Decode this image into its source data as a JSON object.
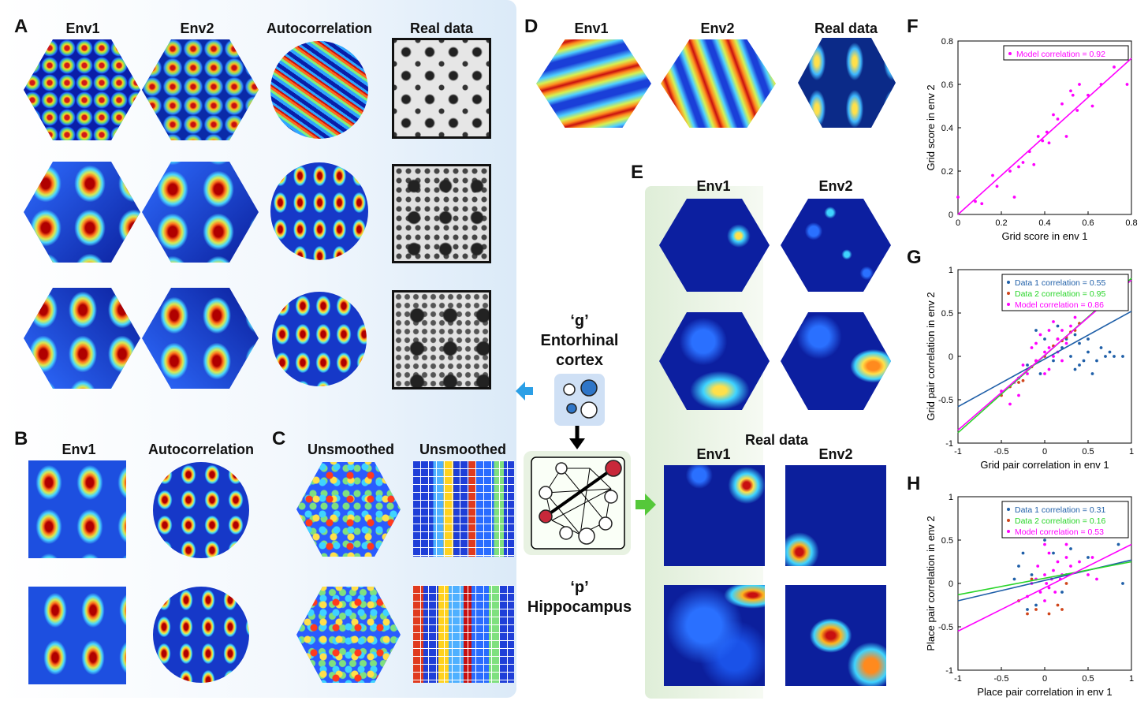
{
  "colors": {
    "jet_low": "#00007f",
    "jet_mid": "#00ffff",
    "jet_high": "#7f0000",
    "magenta": "#ff00ff",
    "data1": "#1f5fa8",
    "data2": "#d0451b",
    "data2_line": "#29d529",
    "arrow_blue": "#2b9fe6",
    "arrow_green": "#55c83a"
  },
  "panels": {
    "A": {
      "letter": "A",
      "cols": [
        "Env1",
        "Env2",
        "Autocorrelation",
        "Real data"
      ]
    },
    "B": {
      "letter": "B",
      "cols": [
        "Env1",
        "Autocorrelation"
      ]
    },
    "C": {
      "letter": "C",
      "cols": [
        "Unsmoothed",
        "Unsmoothed"
      ]
    },
    "D": {
      "letter": "D",
      "cols": [
        "Env1",
        "Env2",
        "Real data"
      ]
    },
    "E": {
      "letter": "E",
      "cols": [
        "Env1",
        "Env2"
      ],
      "real_data_title": "Real data",
      "real_cols": [
        "Env1",
        "Env2"
      ]
    },
    "F": {
      "letter": "F"
    },
    "G": {
      "letter": "G"
    },
    "H": {
      "letter": "H"
    }
  },
  "center": {
    "g_label": "‘g’",
    "g_name1": "Entorhinal",
    "g_name2": "cortex",
    "p_label": "‘p’",
    "p_name": "Hippocampus"
  },
  "chart_data": [
    {
      "panel": "F",
      "type": "scatter",
      "xlabel": "Grid score in env 1",
      "ylabel": "Grid score in env 2",
      "xlim": [
        0,
        0.8
      ],
      "ylim": [
        0,
        0.8
      ],
      "xticks": [
        "0",
        "0.2",
        "0.4",
        "0.6",
        "0.8"
      ],
      "yticks": [
        "0",
        "0.2",
        "0.4",
        "0.6",
        "0.8"
      ],
      "legend": [
        "Model correlation = 0.92"
      ],
      "legend_placement": "top-right",
      "series": [
        {
          "name": "Model correlation = 0.92",
          "color": "#ff00ff",
          "points": [
            [
              0.0,
              0.08
            ],
            [
              0.08,
              0.06
            ],
            [
              0.11,
              0.05
            ],
            [
              0.16,
              0.18
            ],
            [
              0.18,
              0.13
            ],
            [
              0.24,
              0.2
            ],
            [
              0.26,
              0.08
            ],
            [
              0.28,
              0.22
            ],
            [
              0.3,
              0.24
            ],
            [
              0.33,
              0.29
            ],
            [
              0.35,
              0.23
            ],
            [
              0.37,
              0.36
            ],
            [
              0.39,
              0.34
            ],
            [
              0.41,
              0.38
            ],
            [
              0.42,
              0.33
            ],
            [
              0.44,
              0.46
            ],
            [
              0.46,
              0.44
            ],
            [
              0.48,
              0.51
            ],
            [
              0.5,
              0.36
            ],
            [
              0.52,
              0.57
            ],
            [
              0.53,
              0.55
            ],
            [
              0.55,
              0.48
            ],
            [
              0.56,
              0.6
            ],
            [
              0.6,
              0.55
            ],
            [
              0.62,
              0.5
            ],
            [
              0.66,
              0.6
            ],
            [
              0.72,
              0.68
            ],
            [
              0.78,
              0.6
            ]
          ],
          "line": [
            [
              0,
              0
            ],
            [
              0.8,
              0.72
            ]
          ]
        }
      ]
    },
    {
      "panel": "G",
      "type": "scatter",
      "xlabel": "Grid pair correlation in env 1",
      "ylabel": "Grid pair correlation in env 2",
      "xlim": [
        -1,
        1
      ],
      "ylim": [
        -1,
        1
      ],
      "xticks": [
        "-1",
        "-0.5",
        "0",
        "0.5",
        "1"
      ],
      "yticks": [
        "-1",
        "-0.5",
        "0",
        "0.5",
        "1"
      ],
      "legend": [
        "Data 1 correlation = 0.55",
        "Data 2 correlation = 0.95",
        "Model correlation = 0.86"
      ],
      "legend_placement": "top-right",
      "series": [
        {
          "name": "Data 1 correlation = 0.55",
          "color": "#1f5fa8",
          "line": [
            [
              -1,
              -0.58
            ],
            [
              1,
              0.52
            ]
          ],
          "points": [
            [
              0.3,
              0.0
            ],
            [
              0.4,
              -0.1
            ],
            [
              0.5,
              0.05
            ],
            [
              0.6,
              -0.05
            ],
            [
              0.7,
              0.0
            ],
            [
              0.55,
              -0.2
            ],
            [
              0.45,
              -0.05
            ],
            [
              0.8,
              0.0
            ],
            [
              0.35,
              -0.15
            ],
            [
              0.65,
              0.1
            ],
            [
              0.2,
              0.1
            ],
            [
              -0.2,
              -0.1
            ],
            [
              0.0,
              0.2
            ],
            [
              0.1,
              -0.05
            ],
            [
              0.25,
              0.2
            ],
            [
              -0.1,
              0.3
            ],
            [
              0.15,
              0.35
            ],
            [
              0.35,
              0.25
            ],
            [
              -0.3,
              -0.25
            ],
            [
              -0.05,
              -0.2
            ],
            [
              0.4,
              0.15
            ],
            [
              0.75,
              0.05
            ],
            [
              0.9,
              0.0
            ],
            [
              0.5,
              0.2
            ]
          ]
        },
        {
          "name": "Data 2 correlation = 0.95",
          "color": "#d0451b",
          "line": [
            [
              -1,
              -0.88
            ],
            [
              1,
              0.9
            ]
          ],
          "points": [
            [
              -0.5,
              -0.45
            ],
            [
              -0.3,
              -0.3
            ],
            [
              -0.2,
              -0.15
            ],
            [
              0.0,
              0.0
            ],
            [
              0.1,
              0.12
            ],
            [
              0.2,
              0.18
            ],
            [
              0.3,
              0.28
            ],
            [
              0.4,
              0.38
            ],
            [
              -0.4,
              -0.35
            ],
            [
              -0.1,
              -0.05
            ],
            [
              0.15,
              0.2
            ],
            [
              -0.25,
              -0.28
            ],
            [
              0.35,
              0.3
            ],
            [
              0.25,
              0.22
            ],
            [
              -0.15,
              -0.12
            ]
          ]
        },
        {
          "name": "Model correlation = 0.86",
          "color": "#ff00ff",
          "line": [
            [
              -1,
              -0.85
            ],
            [
              1,
              0.88
            ]
          ],
          "points": [
            [
              -0.5,
              -0.4
            ],
            [
              -0.35,
              -0.3
            ],
            [
              -0.2,
              -0.2
            ],
            [
              -0.1,
              -0.05
            ],
            [
              0.0,
              0.05
            ],
            [
              0.05,
              0.1
            ],
            [
              0.1,
              0.0
            ],
            [
              0.15,
              0.2
            ],
            [
              0.2,
              0.3
            ],
            [
              0.25,
              0.15
            ],
            [
              0.3,
              0.35
            ],
            [
              -0.05,
              0.25
            ],
            [
              -0.15,
              0.1
            ],
            [
              0.05,
              -0.15
            ],
            [
              -0.25,
              -0.1
            ],
            [
              0.1,
              0.4
            ],
            [
              -0.3,
              -0.45
            ],
            [
              0.2,
              -0.05
            ],
            [
              0.0,
              -0.2
            ],
            [
              0.15,
              0.05
            ],
            [
              -0.1,
              0.15
            ],
            [
              0.35,
              0.45
            ],
            [
              -0.4,
              -0.55
            ],
            [
              0.05,
              0.3
            ]
          ]
        }
      ]
    },
    {
      "panel": "H",
      "type": "scatter",
      "xlabel": "Place pair correlation in env 1",
      "ylabel": "Place pair correlation in env 2",
      "xlim": [
        -1,
        1
      ],
      "ylim": [
        -1,
        1
      ],
      "xticks": [
        "-1",
        "-0.5",
        "0",
        "0.5",
        "1"
      ],
      "yticks": [
        "-1",
        "-0.5",
        "0",
        "0.5",
        "1"
      ],
      "legend": [
        "Data 1 correlation = 0.31",
        "Data 2 correlation = 0.16",
        "Model correlation = 0.53"
      ],
      "legend_placement": "top-right",
      "series": [
        {
          "name": "Data 1 correlation = 0.31",
          "color": "#1f5fa8",
          "line": [
            [
              -1,
              -0.2
            ],
            [
              1,
              0.27
            ]
          ],
          "points": [
            [
              -0.3,
              0.2
            ],
            [
              -0.2,
              -0.3
            ],
            [
              0.1,
              0.35
            ],
            [
              0.25,
              0.1
            ],
            [
              -0.1,
              -0.25
            ],
            [
              0.3,
              0.4
            ],
            [
              0.9,
              0.0
            ],
            [
              0.85,
              0.45
            ],
            [
              -0.35,
              0.05
            ],
            [
              0.0,
              0.5
            ],
            [
              0.2,
              -0.1
            ],
            [
              -0.25,
              0.35
            ],
            [
              0.5,
              0.3
            ],
            [
              -0.15,
              0.1
            ]
          ]
        },
        {
          "name": "Data 2 correlation = 0.16",
          "color": "#d0451b",
          "line": [
            [
              -1,
              -0.13
            ],
            [
              1,
              0.25
            ]
          ],
          "points": [
            [
              -0.2,
              -0.35
            ],
            [
              -0.1,
              -0.3
            ],
            [
              0.15,
              -0.25
            ],
            [
              0.2,
              -0.3
            ],
            [
              -0.3,
              -0.2
            ],
            [
              0.25,
              0.0
            ],
            [
              0.05,
              -0.35
            ],
            [
              -0.15,
              0.05
            ]
          ]
        },
        {
          "name": "Model correlation = 0.53",
          "color": "#ff00ff",
          "line": [
            [
              -1,
              -0.55
            ],
            [
              1,
              0.45
            ]
          ],
          "points": [
            [
              -0.1,
              0.05
            ],
            [
              0.0,
              0.1
            ],
            [
              0.05,
              -0.05
            ],
            [
              0.1,
              0.15
            ],
            [
              -0.05,
              -0.1
            ],
            [
              0.15,
              0.25
            ],
            [
              0.2,
              0.1
            ],
            [
              0.25,
              0.3
            ],
            [
              -0.15,
              0.0
            ],
            [
              0.05,
              0.35
            ],
            [
              0.0,
              0.45
            ],
            [
              -0.05,
              0.55
            ],
            [
              0.1,
              0.6
            ],
            [
              0.3,
              0.2
            ],
            [
              0.4,
              0.25
            ],
            [
              0.5,
              0.1
            ],
            [
              0.55,
              0.3
            ],
            [
              0.6,
              0.05
            ],
            [
              -0.2,
              -0.15
            ],
            [
              0.02,
              0.0
            ],
            [
              0.08,
              0.05
            ],
            [
              -0.08,
              0.2
            ],
            [
              0.12,
              -0.1
            ],
            [
              0.18,
              0.05
            ],
            [
              0.0,
              -0.2
            ],
            [
              0.25,
              0.45
            ]
          ]
        }
      ]
    }
  ]
}
